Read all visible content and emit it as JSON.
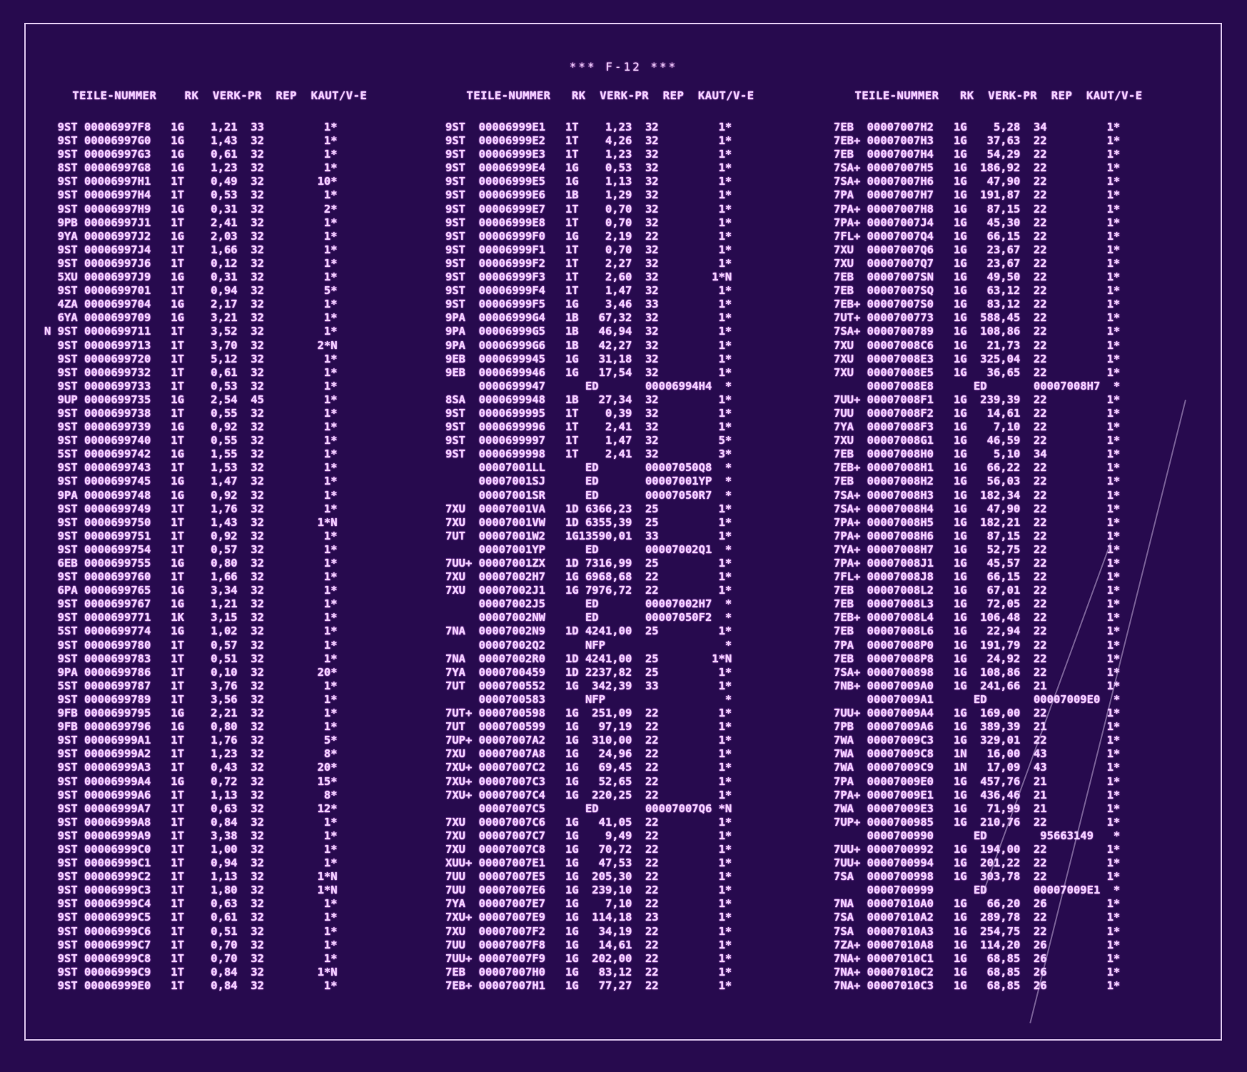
{
  "title": "*** F-12 ***",
  "headers": [
    "    TEILE-NUMMER    RK  VERK-PR  REP  KAUT/V-E",
    "   TEILE-NUMMER   RK  VERK-PR  REP  KAUT/V-E",
    "   TEILE-NUMMER   RK  VERK-PR  REP  KAUT/V-E"
  ],
  "columns": [
    [
      "  9ST 00006997F8   1G    1,21  33         1*",
      "  9ST 00006997G0   1G    1,43  32         1*",
      "  9ST 00006997G3   1G    0,61  32         1*",
      "  8ST 00006997G8   1G    1,23  32         1*",
      "  9ST 00006997H1   1T    0,49  32        10*",
      "  9ST 00006997H4   1T    0,53  32         1*",
      "  9ST 00006997H9   1G    0,31  32         2*",
      "  9PB 00006997J1   1T    2,41  32         1*",
      "  9YA 00006997J2   1G    2,03  32         1*",
      "  9ST 00006997J4   1T    1,66  32         1*",
      "  9ST 00006997J6   1T    0,12  32         1*",
      "  5XU 00006997J9   1G    0,31  32         1*",
      "  9ST 0000699701   1T    0,94  32         5*",
      "  4ZA 0000699704   1G    2,17  32         1*",
      "  6YA 0000699709   1G    3,21  32         1*",
      "N 9ST 0000699711   1T    3,52  32         1*",
      "  9ST 0000699713   1T    3,70  32        2*N",
      "  9ST 0000699720   1T    5,12  32         1*",
      "  9ST 0000699732   1T    0,61  32         1*",
      "  9ST 0000699733   1T    0,53  32         1*",
      "  9UP 0000699735   1G    2,54  45         1*",
      "  9ST 0000699738   1T    0,55  32         1*",
      "  9ST 0000699739   1G    0,92  32         1*",
      "  9ST 0000699740   1T    0,55  32         1*",
      "  5ST 0000699742   1G    1,55  32         1*",
      "  9ST 0000699743   1T    1,53  32         1*",
      "  9ST 0000699745   1G    1,47  32         1*",
      "  9PA 0000699748   1G    0,92  32         1*",
      "  9ST 0000699749   1T    1,76  32         1*",
      "  9ST 0000699750   1T    1,43  32        1*N",
      "  9ST 0000699751   1T    0,92  32         1*",
      "  9ST 0000699754   1T    0,57  32         1*",
      "  6EB 0000699755   1G    0,80  32         1*",
      "  9ST 0000699760   1T    1,66  32         1*",
      "  6PA 0000699765   1G    3,34  32         1*",
      "  9ST 0000699767   1G    1,21  32         1*",
      "  9ST 0000699771   1K    3,15  32         1*",
      "  5ST 0000699774   1G    1,02  32         1*",
      "  9ST 0000699780   1T    0,57  32         1*",
      "  9ST 0000699783   1T    0,51  32         1*",
      "  9PA 0000699786   1T    0,10  32        20*",
      "  5ST 0000699787   1T    3,76  32         1*",
      "  9ST 0000699789   1T    3,56  32         1*",
      "  9FB 0000699795   1G    2,21  32         1*",
      "  9FB 0000699796   1G    0,80  32         1*",
      "  9ST 00006999A1   1T    1,76  32         5*",
      "  9ST 00006999A2   1T    1,23  32         8*",
      "  9ST 00006999A3   1T    0,43  32        20*",
      "  9ST 00006999A4   1G    0,72  32        15*",
      "  9ST 00006999A6   1T    1,13  32         8*",
      "  9ST 00006999A7   1T    0,63  32        12*",
      "  9ST 00006999A8   1T    0,84  32         1*",
      "  9ST 00006999A9   1T    3,38  32         1*",
      "  9ST 00006999C0   1T    1,00  32         1*",
      "  9ST 00006999C1   1T    0,94  32         1*",
      "  9ST 00006999C2   1T    1,13  32        1*N",
      "  9ST 00006999C3   1T    1,80  32        1*N",
      "  9ST 00006999C4   1T    0,63  32         1*",
      "  9ST 00006999C5   1T    0,61  32         1*",
      "  9ST 00006999C6   1T    0,51  32         1*",
      "  9ST 00006999C7   1T    0,70  32         1*",
      "  9ST 00006999C8   1T    0,70  32         1*",
      "  9ST 00006999C9   1T    0,84  32        1*N",
      "  9ST 00006999E0   1T    0,84  32         1*"
    ],
    [
      "9ST  00006999E1   1T    1,23  32         1*",
      "9ST  00006999E2   1T    4,26  32         1*",
      "9ST  00006999E3   1T    1,23  32         1*",
      "9ST  00006999E4   1G    0,53  32         1*",
      "9ST  00006999E5   1G    1,13  32         1*",
      "9ST  00006999E6   1B    1,29  32         1*",
      "9ST  00006999E7   1T    0,70  32         1*",
      "9ST  00006999E8   1T    0,70  32         1*",
      "9ST  00006999F0   1G    2,19  22         1*",
      "9ST  00006999F1   1T    0,70  32         1*",
      "9ST  00006999F2   1T    2,27  32         1*",
      "9ST  00006999F3   1T    2,60  32        1*N",
      "9ST  00006999F4   1T    1,47  32         1*",
      "9ST  00006999F5   1G    3,46  33         1*",
      "9PA  00006999G4   1B   67,32  32         1*",
      "9PA  00006999G5   1B   46,94  32         1*",
      "9PA  00006999G6   1B   42,27  32         1*",
      "9EB  0000699945   1G   31,18  32         1*",
      "9EB  0000699946   1G   17,54  32         1*",
      "     0000699947      ED       00006994H4  *",
      "8SA  0000699948   1B   27,34  32         1*",
      "9ST  0000699995   1T    0,39  32         1*",
      "9ST  0000699996   1T    2,41  32         1*",
      "9ST  0000699997   1T    1,47  32         5*",
      "9ST  0000699998   1T    2,41  32         3*",
      "     00007001LL      ED       00007050Q8  *",
      "     00007001SJ      ED       00007001YP  *",
      "     00007001SR      ED       00007050R7  *",
      "7XU  00007001VA   1D 6366,23  25         1*",
      "7XU  00007001VW   1D 6355,39  25         1*",
      "7UT  00007001W2   1G13590,01  33         1*",
      "     00007001YP      ED       00007002Q1  *",
      "7UU+ 00007001ZX   1D 7316,99  25         1*",
      "7XU  00007002H7   1G 6968,68  22         1*",
      "7XU  00007002J1   1G 7976,72  22         1*",
      "     00007002J5      ED       00007002H7  *",
      "     00007002NW      ED       00007050F2  *",
      "7NA  00007002N9   1D 4241,00  25         1*",
      "     00007002Q2      NFP                  *",
      "7NA  00007002R0   1D 4241,00  25        1*N",
      "7YA  0000700459   1D 2237,82  25         1*",
      "7UT  0000700552   1G  342,39  33         1*",
      "     0000700583      NFP                  *",
      "7UT+ 0000700598   1G  251,09  22         1*",
      "7UT  0000700599   1G   97,19  22         1*",
      "7UP+ 00007007A2   1G  310,00  22         1*",
      "7XU  00007007A8   1G   24,96  22         1*",
      "7XU+ 00007007C2   1G   69,45  22         1*",
      "7XU+ 00007007C3   1G   52,65  22         1*",
      "7XU+ 00007007C4   1G  220,25  22         1*",
      "     00007007C5      ED       00007007Q6 *N",
      "7XU  00007007C6   1G   41,05  22         1*",
      "7XU  00007007C7   1G    9,49  22         1*",
      "7XU  00007007C8   1G   70,72  22         1*",
      "XUU+ 00007007E1   1G   47,53  22         1*",
      "7UU  00007007E5   1G  205,30  22         1*",
      "7UU  00007007E6   1G  239,10  22         1*",
      "7YA  00007007E7   1G    7,10  22         1*",
      "7XU+ 00007007E9   1G  114,18  23         1*",
      "7XU  00007007F2   1G   34,19  22         1*",
      "7UU  00007007F8   1G   14,61  22         1*",
      "7UU+ 00007007F9   1G  202,00  22         1*",
      "7EB  00007007H0   1G   83,12  22         1*",
      "7EB+ 00007007H1   1G   77,27  22         1*"
    ],
    [
      "7EB  00007007H2   1G    5,28  34         1*",
      "7EB+ 00007007H3   1G   37,63  22         1*",
      "7EB  00007007H4   1G   54,29  22         1*",
      "7SA+ 00007007H5   1G  186,92  22         1*",
      "7SA+ 00007007H6   1G   47,90  22         1*",
      "7PA  00007007H7   1G  191,87  22         1*",
      "7PA+ 00007007H8   1G   87,15  22         1*",
      "7PA+ 00007007J4   1G   45,30  22         1*",
      "7FL+ 00007007Q4   1G   66,15  22         1*",
      "7XU  00007007Q6   1G   23,67  22         1*",
      "7XU  00007007Q7   1G   23,67  22         1*",
      "7EB  00007007SN   1G   49,50  22         1*",
      "7EB  00007007SQ   1G   63,12  22         1*",
      "7EB+ 00007007S0   1G   83,12  22         1*",
      "7UT+ 0000700773   1G  588,45  22         1*",
      "7SA+ 0000700789   1G  108,86  22         1*",
      "7XU  00007008C6   1G   21,73  22         1*",
      "7XU  00007008E3   1G  325,04  22         1*",
      "7XU  00007008E5   1G   36,65  22         1*",
      "     00007008E8      ED       00007008H7  *",
      "7UU+ 00007008F1   1G  239,39  22         1*",
      "7UU  00007008F2   1G   14,61  22         1*",
      "7YA  00007008F3   1G    7,10  22         1*",
      "7XU  00007008G1   1G   46,59  22         1*",
      "7EB  00007008H0   1G    5,10  34         1*",
      "7EB+ 00007008H1   1G   66,22  22         1*",
      "7EB  00007008H2   1G   56,03  22         1*",
      "7SA+ 00007008H3   1G  182,34  22         1*",
      "7SA+ 00007008H4   1G   47,90  22         1*",
      "7PA+ 00007008H5   1G  182,21  22         1*",
      "7PA+ 00007008H6   1G   87,15  22         1*",
      "7YA+ 00007008H7   1G   52,75  22         1*",
      "7PA+ 00007008J1   1G   45,57  22         1*",
      "7FL+ 00007008J8   1G   66,15  22         1*",
      "7EB  00007008L2   1G   67,01  22         1*",
      "7EB  00007008L3   1G   72,05  22         1*",
      "7EB+ 00007008L4   1G  106,48  22         1*",
      "7EB  00007008L6   1G   22,94  22         1*",
      "7PA  00007008P0   1G  191,79  22         1*",
      "7EB  00007008P8   1G   24,92  22         1*",
      "7SA+ 0000700898   1G  108,86  22         1*",
      "7NB+ 00007009A0   1G  241,66  21         1*",
      "     00007009A1      ED       00007009E0  *",
      "7UU+ 00007009A4   1G  169,00  22         1*",
      "7PB  00007009A6   1G  389,39  21         1*",
      "7WA  00007009C3   1G  329,01  22         1*",
      "7WA  00007009C8   1N   16,00  43         1*",
      "7WA  00007009C9   1N   17,09  43         1*",
      "7PA  00007009E0   1G  457,76  21         1*",
      "7PA+ 00007009E1   1G  436,46  21         1*",
      "7WA  00007009E3   1G   71,99  21         1*",
      "7UP+ 0000700985   1G  210,76  22         1*",
      "     0000700990      ED        95663149   *",
      "7UU+ 0000700992   1G  194,00  22         1*",
      "7UU+ 0000700994   1G  201,22  22         1*",
      "7SA  0000700998   1G  303,78  22         1*",
      "     0000700999      ED       00007009E1  *",
      "7NA  00007010A0   1G   66,20  26         1*",
      "7SA  00007010A2   1G  289,78  22         1*",
      "7SA  00007010A3   1G  254,75  22         1*",
      "7ZA+ 00007010A8   1G  114,20  26         1*",
      "7NA+ 00007010C1   1G   68,85  26         1*",
      "7NA+ 00007010C2   1G   68,85  26         1*",
      "7NA+ 00007010C3   1G   68,85  26         1*"
    ]
  ]
}
